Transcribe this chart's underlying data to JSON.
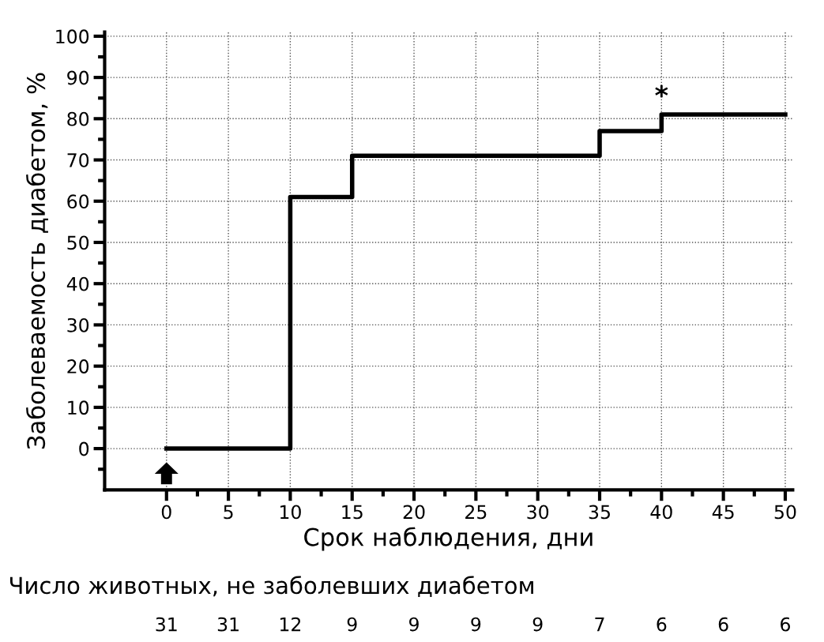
{
  "chart_data": {
    "type": "step",
    "xlabel": "Срок наблюдения, дни",
    "ylabel": "Заболеваемость диабетом, %",
    "x": [
      0,
      10,
      15,
      35,
      40,
      50
    ],
    "series": [
      {
        "color": "#000000",
        "values": [
          0,
          61,
          71,
          77,
          81,
          81
        ]
      }
    ],
    "xlim": [
      -5,
      50.6
    ],
    "ylim": [
      -10,
      101
    ],
    "xticks": [
      0,
      5,
      10,
      15,
      20,
      25,
      30,
      35,
      40,
      45,
      50
    ],
    "yticks": [
      0,
      10,
      20,
      30,
      40,
      50,
      60,
      70,
      80,
      90,
      100
    ],
    "grid": true,
    "line_style": "solid",
    "marker": "none",
    "annotations": [
      {
        "text": "*",
        "x": 40,
        "y": 81
      },
      "Число животных, не заболевших диабетом",
      "31",
      "31",
      "12",
      "9",
      "9",
      "9",
      "9",
      "7",
      "6",
      "6",
      "6"
    ]
  }
}
